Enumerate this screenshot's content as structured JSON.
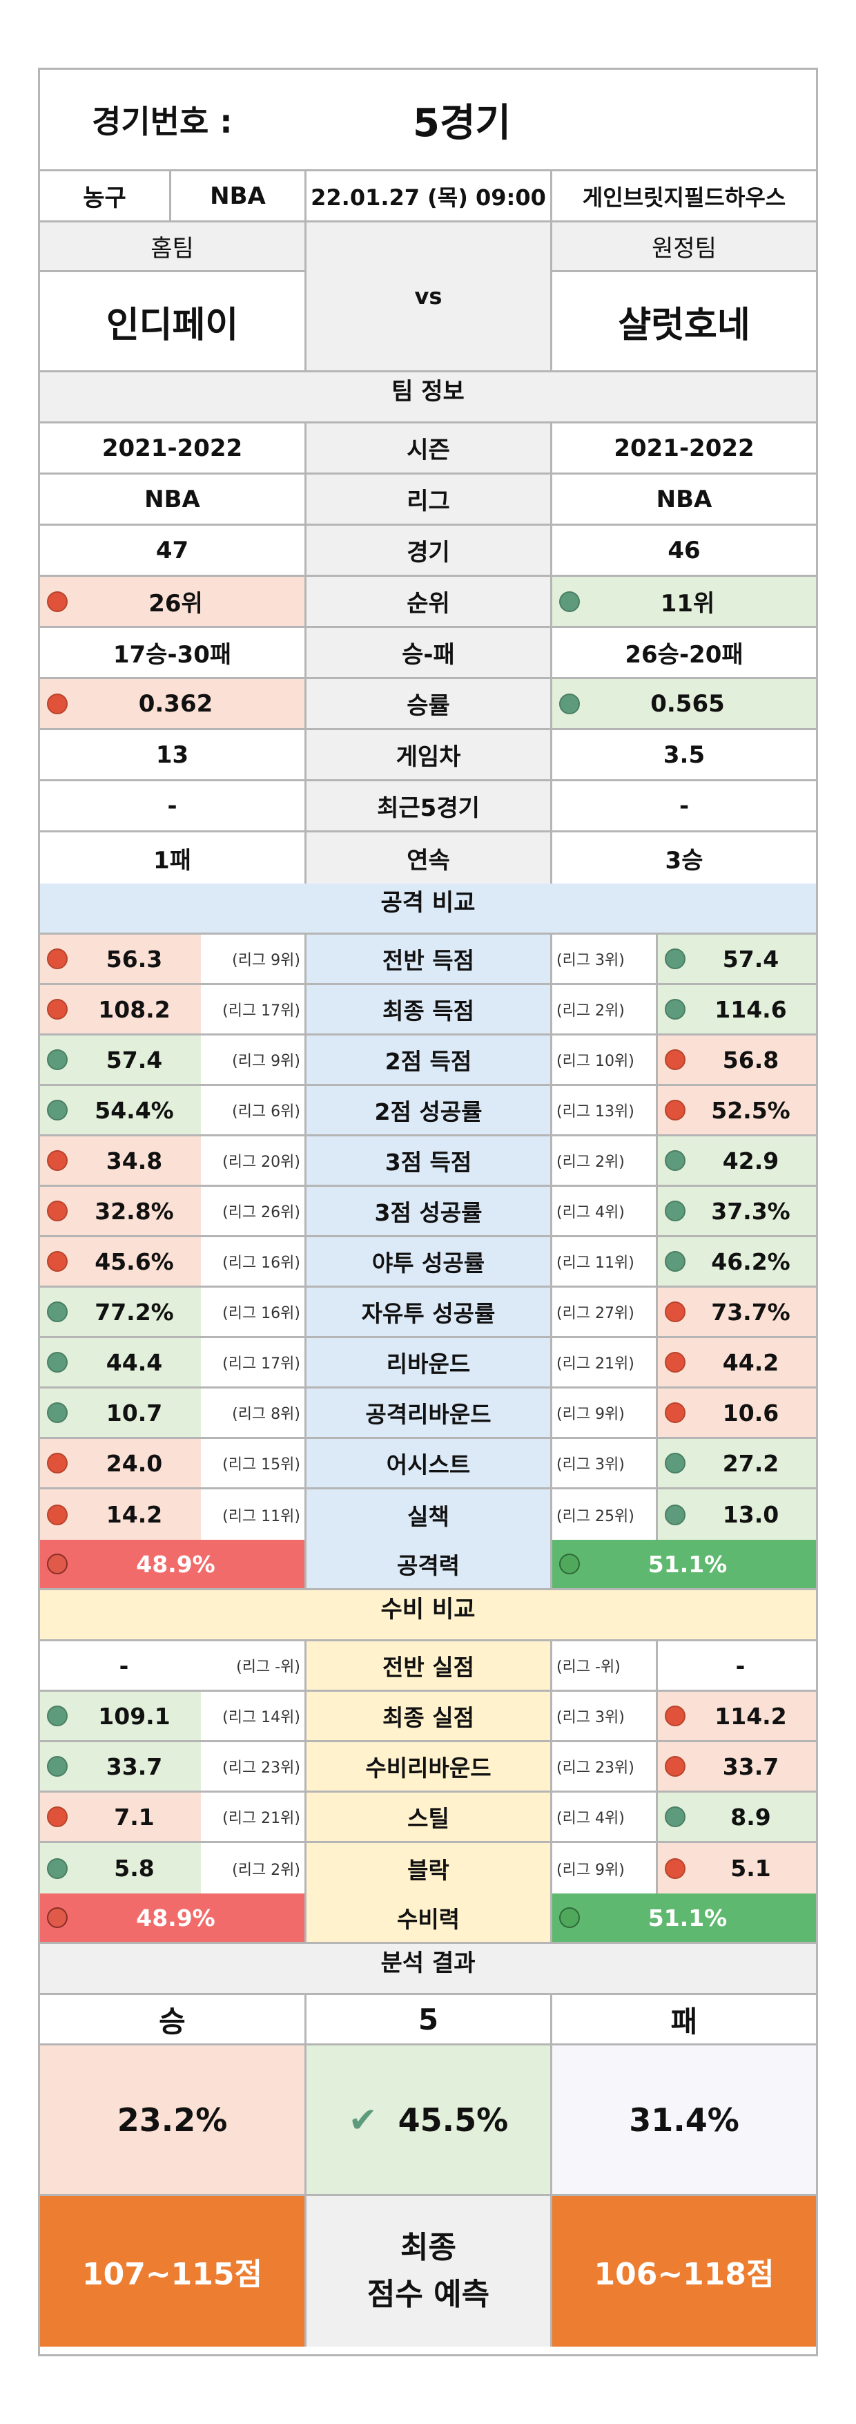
{
  "header": {
    "label": "경기번호 :",
    "value": "5경기"
  },
  "match": {
    "sport": "농구",
    "league": "NBA",
    "datetime": "22.01.27 (목) 09:00",
    "venue": "게인브릿지필드하우스"
  },
  "teams": {
    "home_label": "홈팀",
    "away_label": "원정팀",
    "vs": "vs",
    "home": "인디페이",
    "away": "샬럿호네"
  },
  "team_info": {
    "title": "팀 정보",
    "rows": [
      {
        "label": "시즌",
        "home": "2021-2022",
        "away": "2021-2022"
      },
      {
        "label": "리그",
        "home": "NBA",
        "away": "NBA"
      },
      {
        "label": "경기",
        "home": "47",
        "away": "46"
      },
      {
        "label": "순위",
        "home": "26위",
        "away": "11위"
      },
      {
        "label": "승-패",
        "home": "17승-30패",
        "away": "26승-20패"
      },
      {
        "label": "승률",
        "home": "0.362",
        "away": "0.565"
      },
      {
        "label": "게임차",
        "home": "13",
        "away": "3.5"
      },
      {
        "label": "최근5경기",
        "home": "-",
        "away": "-"
      },
      {
        "label": "연속",
        "home": "1패",
        "away": "3승"
      }
    ]
  },
  "attack": {
    "title": "공격 비교",
    "rows": [
      {
        "label": "전반 득점",
        "home": "56.3",
        "home_rank": "(리그 9위)",
        "away": "57.4",
        "away_rank": "(리그 3위)"
      },
      {
        "label": "최종 득점",
        "home": "108.2",
        "home_rank": "(리그 17위)",
        "away": "114.6",
        "away_rank": "(리그 2위)"
      },
      {
        "label": "2점 득점",
        "home": "57.4",
        "home_rank": "(리그 9위)",
        "away": "56.8",
        "away_rank": "(리그 10위)"
      },
      {
        "label": "2점 성공률",
        "home": "54.4%",
        "home_rank": "(리그 6위)",
        "away": "52.5%",
        "away_rank": "(리그 13위)"
      },
      {
        "label": "3점 득점",
        "home": "34.8",
        "home_rank": "(리그 20위)",
        "away": "42.9",
        "away_rank": "(리그 2위)"
      },
      {
        "label": "3점 성공률",
        "home": "32.8%",
        "home_rank": "(리그 26위)",
        "away": "37.3%",
        "away_rank": "(리그 4위)"
      },
      {
        "label": "야투 성공률",
        "home": "45.6%",
        "home_rank": "(리그 16위)",
        "away": "46.2%",
        "away_rank": "(리그 11위)"
      },
      {
        "label": "자유투 성공률",
        "home": "77.2%",
        "home_rank": "(리그 16위)",
        "away": "73.7%",
        "away_rank": "(리그 27위)"
      },
      {
        "label": "리바운드",
        "home": "44.4",
        "home_rank": "(리그 17위)",
        "away": "44.2",
        "away_rank": "(리그 21위)"
      },
      {
        "label": "공격리바운드",
        "home": "10.7",
        "home_rank": "(리그 8위)",
        "away": "10.6",
        "away_rank": "(리그 9위)"
      },
      {
        "label": "어시스트",
        "home": "24.0",
        "home_rank": "(리그 15위)",
        "away": "27.2",
        "away_rank": "(리그 3위)"
      },
      {
        "label": "실책",
        "home": "14.2",
        "home_rank": "(리그 11위)",
        "away": "13.0",
        "away_rank": "(리그 25위)"
      }
    ],
    "total": {
      "label": "공격력",
      "home": "48.9%",
      "away": "51.1%"
    }
  },
  "defense": {
    "title": "수비 비교",
    "rows": [
      {
        "label": "전반 실점",
        "home": "-",
        "home_rank": "(리그 -위)",
        "away": "-",
        "away_rank": "(리그 -위)"
      },
      {
        "label": "최종 실점",
        "home": "109.1",
        "home_rank": "(리그 14위)",
        "away": "114.2",
        "away_rank": "(리그 3위)"
      },
      {
        "label": "수비리바운드",
        "home": "33.7",
        "home_rank": "(리그 23위)",
        "away": "33.7",
        "away_rank": "(리그 23위)"
      },
      {
        "label": "스틸",
        "home": "7.1",
        "home_rank": "(리그 21위)",
        "away": "8.9",
        "away_rank": "(리그 4위)"
      },
      {
        "label": "블락",
        "home": "5.8",
        "home_rank": "(리그 2위)",
        "away": "5.1",
        "away_rank": "(리그 9위)"
      }
    ],
    "total": {
      "label": "수비력",
      "home": "48.9%",
      "away": "51.1%"
    }
  },
  "result": {
    "title": "분석 결과",
    "win": "승",
    "draw": "5",
    "lose": "패",
    "win_pct": "23.2%",
    "draw_pct": "45.5%",
    "lose_pct": "31.4%",
    "home_score": "107~115점",
    "away_score": "106~118점",
    "pred_label_1": "최종",
    "pred_label_2": "점수 예측"
  },
  "colors": {
    "win_dot": "#5e9b7d",
    "lose_dot": "#e0533a",
    "orange": "#ed7d31",
    "attack_bg": "#dce9f6",
    "defense_bg": "#fff2cc"
  }
}
